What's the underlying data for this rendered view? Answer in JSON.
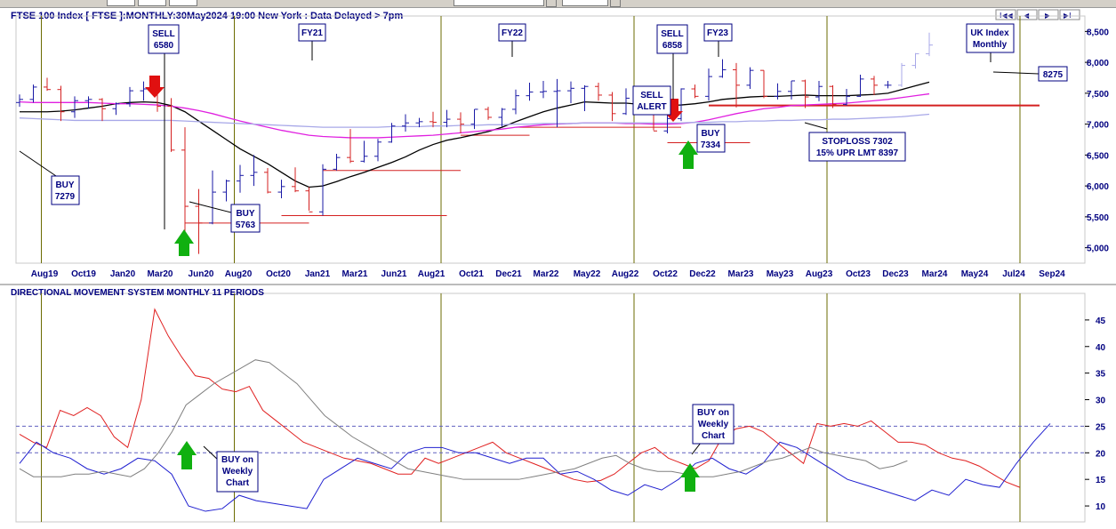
{
  "header": {
    "title": "FTSE 100 Index [ FTSE ]:MONTHLY:30May2024 19:00 New York : Data Delayed > 7pm",
    "nav_first": "I◀◀",
    "nav_prev": "◀",
    "nav_next": "▶",
    "nav_last": "▶I"
  },
  "indicator_title": "DIRECTIONAL MOVEMENT SYSTEM MONTHLY 11 PERIODS",
  "colors": {
    "up_bar": "#1a1aa6",
    "down_bar": "#d42020",
    "ma_black": "#000000",
    "ma_magenta": "#e020e0",
    "ma_lavender": "#a8a8e8",
    "di_plus": "#2020d0",
    "di_minus": "#e02020",
    "adx": "#808080",
    "vline": "#6b6b00",
    "arrow_up": "#10b010",
    "arrow_down": "#e01010",
    "dash": "#6060c0"
  },
  "chart_data": [
    {
      "type": "line",
      "title": "FTSE 100 Index [ FTSE ]:MONTHLY:30May2024 19:00 New York : Data Delayed > 7pm",
      "x_tick_labels": [
        "Aug19",
        "Oct19",
        "Jan20",
        "Mar20",
        "Jun20",
        "Aug20",
        "Oct20",
        "Jan21",
        "Mar21",
        "Jun21",
        "Aug21",
        "Oct21",
        "Dec21",
        "Mar22",
        "May22",
        "Aug22",
        "Oct22",
        "Dec22",
        "Mar23",
        "May23",
        "Aug23",
        "Oct23",
        "Dec23",
        "Mar24",
        "May24",
        "Jul24",
        "Sep24"
      ],
      "y_ticks": [
        "5,000",
        "5,500",
        "6,000",
        "6,500",
        "7,000",
        "7,500",
        "8,000",
        "8,500"
      ],
      "ylim": [
        4750,
        8750
      ],
      "grid": false,
      "ohlc": [
        {
          "o": 7350,
          "h": 7480,
          "l": 7280,
          "c": 7400
        },
        {
          "o": 7400,
          "h": 7640,
          "l": 7350,
          "c": 7600
        },
        {
          "o": 7600,
          "h": 7750,
          "l": 7540,
          "c": 7560
        },
        {
          "o": 7560,
          "h": 7620,
          "l": 7050,
          "c": 7200
        },
        {
          "o": 7200,
          "h": 7450,
          "l": 7100,
          "c": 7380
        },
        {
          "o": 7380,
          "h": 7450,
          "l": 7250,
          "c": 7400
        },
        {
          "o": 7400,
          "h": 7420,
          "l": 7050,
          "c": 7250
        },
        {
          "o": 7250,
          "h": 7350,
          "l": 7150,
          "c": 7330
        },
        {
          "o": 7330,
          "h": 7600,
          "l": 7280,
          "c": 7540
        },
        {
          "o": 7540,
          "h": 7690,
          "l": 7380,
          "c": 7570
        },
        {
          "o": 7570,
          "h": 7670,
          "l": 7200,
          "c": 7290
        },
        {
          "o": 7290,
          "h": 7420,
          "l": 6550,
          "c": 6580
        },
        {
          "o": 6580,
          "h": 6950,
          "l": 5020,
          "c": 5670
        },
        {
          "o": 5670,
          "h": 5950,
          "l": 4900,
          "c": 5400
        },
        {
          "o": 5400,
          "h": 6250,
          "l": 5380,
          "c": 5900
        },
        {
          "o": 5900,
          "h": 6100,
          "l": 5750,
          "c": 6080
        },
        {
          "o": 6080,
          "h": 6340,
          "l": 5890,
          "c": 6170
        },
        {
          "o": 6170,
          "h": 6500,
          "l": 6000,
          "c": 6220
        },
        {
          "o": 6220,
          "h": 6290,
          "l": 5880,
          "c": 5900
        },
        {
          "o": 5900,
          "h": 6100,
          "l": 5800,
          "c": 5990
        },
        {
          "o": 5990,
          "h": 6300,
          "l": 5900,
          "c": 5920
        },
        {
          "o": 5920,
          "h": 5980,
          "l": 5600,
          "c": 5580
        },
        {
          "o": 5580,
          "h": 6350,
          "l": 5520,
          "c": 6270
        },
        {
          "o": 6270,
          "h": 6520,
          "l": 6250,
          "c": 6460
        },
        {
          "o": 6460,
          "h": 6920,
          "l": 6370,
          "c": 6400
        },
        {
          "o": 6400,
          "h": 6730,
          "l": 6380,
          "c": 6480
        },
        {
          "o": 6480,
          "h": 6760,
          "l": 6400,
          "c": 6710
        },
        {
          "o": 6710,
          "h": 7020,
          "l": 6700,
          "c": 6970
        },
        {
          "o": 6970,
          "h": 7160,
          "l": 6880,
          "c": 7020
        },
        {
          "o": 7020,
          "h": 7100,
          "l": 6950,
          "c": 7040
        },
        {
          "o": 7040,
          "h": 7200,
          "l": 6950,
          "c": 7030
        },
        {
          "o": 7030,
          "h": 7230,
          "l": 6950,
          "c": 7080
        },
        {
          "o": 7080,
          "h": 7190,
          "l": 6850,
          "c": 7000
        },
        {
          "o": 7000,
          "h": 7240,
          "l": 6920,
          "c": 7240
        },
        {
          "o": 7240,
          "h": 7280,
          "l": 7070,
          "c": 7110
        },
        {
          "o": 7110,
          "h": 7260,
          "l": 6960,
          "c": 7240
        },
        {
          "o": 7240,
          "h": 7560,
          "l": 7160,
          "c": 7460
        },
        {
          "o": 7460,
          "h": 7670,
          "l": 7380,
          "c": 7520
        },
        {
          "o": 7520,
          "h": 7700,
          "l": 7420,
          "c": 7530
        },
        {
          "o": 7530,
          "h": 7730,
          "l": 6950,
          "c": 7540
        },
        {
          "o": 7540,
          "h": 7690,
          "l": 7340,
          "c": 7580
        },
        {
          "o": 7580,
          "h": 7630,
          "l": 7210,
          "c": 7610
        },
        {
          "o": 7610,
          "h": 7670,
          "l": 7380,
          "c": 7470
        },
        {
          "o": 7470,
          "h": 7520,
          "l": 7050,
          "c": 7170
        },
        {
          "o": 7170,
          "h": 7580,
          "l": 7150,
          "c": 7420
        },
        {
          "o": 7420,
          "h": 7560,
          "l": 7240,
          "c": 7280
        },
        {
          "o": 7280,
          "h": 7290,
          "l": 6900,
          "c": 6890
        },
        {
          "o": 6890,
          "h": 7230,
          "l": 6850,
          "c": 7090
        },
        {
          "o": 7090,
          "h": 7580,
          "l": 7050,
          "c": 7570
        },
        {
          "o": 7570,
          "h": 7640,
          "l": 7420,
          "c": 7450
        },
        {
          "o": 7450,
          "h": 7900,
          "l": 7380,
          "c": 7770
        },
        {
          "o": 7770,
          "h": 8050,
          "l": 7750,
          "c": 7880
        },
        {
          "o": 7880,
          "h": 7990,
          "l": 7270,
          "c": 7630
        },
        {
          "o": 7630,
          "h": 7920,
          "l": 7570,
          "c": 7870
        },
        {
          "o": 7870,
          "h": 7870,
          "l": 7420,
          "c": 7450
        },
        {
          "o": 7450,
          "h": 7660,
          "l": 7400,
          "c": 7530
        },
        {
          "o": 7530,
          "h": 7700,
          "l": 7400,
          "c": 7700
        },
        {
          "o": 7700,
          "h": 7720,
          "l": 7260,
          "c": 7440
        },
        {
          "o": 7440,
          "h": 7700,
          "l": 7370,
          "c": 7610
        },
        {
          "o": 7610,
          "h": 7630,
          "l": 7260,
          "c": 7320
        },
        {
          "o": 7320,
          "h": 7570,
          "l": 7300,
          "c": 7450
        },
        {
          "o": 7450,
          "h": 7800,
          "l": 7440,
          "c": 7730
        },
        {
          "o": 7730,
          "h": 7780,
          "l": 7470,
          "c": 7630
        },
        {
          "o": 7630,
          "h": 7700,
          "l": 7580,
          "c": 7630
        },
        {
          "o": 7630,
          "h": 7990,
          "l": 7600,
          "c": 7950
        },
        {
          "o": 7950,
          "h": 8150,
          "l": 7900,
          "c": 8140
        },
        {
          "o": 8140,
          "h": 8480,
          "l": 8100,
          "c": 8280
        }
      ],
      "series": [
        {
          "values": [
            7200,
            7200,
            7200,
            7210,
            7230,
            7260,
            7290,
            7330,
            7350,
            7360,
            7350,
            7300,
            7200,
            7050,
            6900,
            6750,
            6600,
            6480,
            6360,
            6220,
            6080,
            5980,
            6000,
            6070,
            6150,
            6220,
            6300,
            6380,
            6470,
            6580,
            6670,
            6740,
            6780,
            6830,
            6880,
            6950,
            7040,
            7120,
            7200,
            7260,
            7310,
            7360,
            7350,
            7340,
            7340,
            7320,
            7300,
            7300,
            7310,
            7330,
            7360,
            7400,
            7420,
            7440,
            7450,
            7450,
            7460,
            7470,
            7460,
            7460,
            7460,
            7470,
            7480,
            7500,
            7560,
            7620,
            7680
          ]
        },
        {
          "values": [
            7360,
            7350,
            7350,
            7350,
            7350,
            7350,
            7340,
            7330,
            7330,
            7320,
            7310,
            7290,
            7260,
            7220,
            7170,
            7110,
            7050,
            7000,
            6950,
            6900,
            6860,
            6820,
            6800,
            6790,
            6780,
            6780,
            6780,
            6790,
            6800,
            6810,
            6820,
            6840,
            6860,
            6880,
            6900,
            6920,
            6950,
            6970,
            6990,
            7000,
            7010,
            7020,
            7020,
            7020,
            7010,
            7010,
            7000,
            7000,
            7010,
            7030,
            7070,
            7120,
            7170,
            7210,
            7250,
            7270,
            7300,
            7310,
            7320,
            7330,
            7340,
            7360,
            7380,
            7400,
            7430,
            7460,
            7490
          ]
        },
        {
          "values": [
            7100,
            7090,
            7080,
            7070,
            7060,
            7060,
            7060,
            7060,
            7060,
            7060,
            7060,
            7060,
            7050,
            7040,
            7030,
            7020,
            7010,
            7000,
            6990,
            6980,
            6970,
            6960,
            6950,
            6950,
            6950,
            6950,
            6950,
            6960,
            6960,
            6960,
            6970,
            6970,
            6980,
            6980,
            6990,
            6990,
            7000,
            7000,
            7010,
            7010,
            7010,
            7020,
            7020,
            7020,
            7020,
            7020,
            7020,
            7020,
            7020,
            7030,
            7030,
            7040,
            7040,
            7050,
            7050,
            7060,
            7060,
            7070,
            7070,
            7080,
            7080,
            7090,
            7100,
            7110,
            7120,
            7140,
            7160
          ]
        }
      ],
      "support_lines": [
        {
          "y": 5400,
          "x1": 12,
          "x2": 21
        },
        {
          "y": 5520,
          "x1": 19,
          "x2": 31
        },
        {
          "y": 6250,
          "x1": 22,
          "x2": 32
        },
        {
          "y": 6820,
          "x1": 32,
          "x2": 37
        },
        {
          "y": 6950,
          "x1": 36,
          "x2": 48
        },
        {
          "y": 6700,
          "x1": 47,
          "x2": 53
        },
        {
          "y": 7302,
          "x1": 50,
          "x2": 74
        }
      ],
      "vertical_markers": [
        1,
        15,
        30,
        44,
        58,
        72
      ],
      "annotations": {
        "buy_7279": [
          "BUY",
          "7279"
        ],
        "sell_6580": [
          "SELL",
          "6580"
        ],
        "buy_5763": [
          "BUY",
          "5763"
        ],
        "fy21": "FY21",
        "fy22": "FY22",
        "sell_6858": [
          "SELL",
          "6858"
        ],
        "fy23": "FY23",
        "sell_alert": [
          "SELL",
          "ALERT"
        ],
        "buy_7334": [
          "BUY",
          "7334"
        ],
        "stoploss": [
          "STOPLOSS 7302",
          "15% UPR LMT 8397"
        ],
        "uk_index": [
          "UK Index",
          "Monthly"
        ],
        "last_price": "8275"
      }
    },
    {
      "type": "line",
      "title": "DIRECTIONAL MOVEMENT SYSTEM MONTHLY 11 PERIODS",
      "y_ticks": [
        "10",
        "15",
        "20",
        "25",
        "30",
        "35",
        "40",
        "45"
      ],
      "ylim": [
        7,
        50
      ],
      "reference_lines": [
        20,
        25
      ],
      "series": [
        {
          "values": [
            23.5,
            22,
            21,
            28,
            27,
            28.5,
            27,
            23,
            21,
            30,
            47,
            42,
            38,
            34.5,
            34,
            32,
            31.5,
            32.5,
            28,
            26,
            24,
            22,
            21,
            20,
            19,
            18.5,
            18,
            17,
            16,
            16,
            19,
            18,
            19,
            20,
            21,
            22,
            20,
            19,
            18,
            17,
            16,
            15,
            14.5,
            14.8,
            16,
            18,
            20,
            21,
            19,
            18,
            17,
            18.5,
            23,
            24.5,
            25,
            24,
            22,
            20,
            18,
            25.5,
            25,
            25.5,
            25,
            26,
            24,
            22,
            22,
            21.5,
            20,
            19,
            18.5,
            17.5,
            16,
            14.5,
            13.5
          ]
        },
        {
          "values": [
            18,
            22,
            20,
            19,
            17,
            16,
            17,
            19,
            18.5,
            16,
            10,
            9,
            9.5,
            12,
            11,
            10.5,
            10,
            9.5,
            15,
            17,
            19,
            18,
            17,
            20,
            21,
            21,
            20,
            20,
            19,
            18,
            19,
            19,
            16,
            16.5,
            15,
            13,
            12,
            14,
            13,
            15,
            18,
            19,
            17,
            16,
            18,
            22,
            21,
            19,
            17,
            15,
            14,
            13,
            12,
            11,
            13,
            12,
            15,
            14,
            13.5,
            18,
            22,
            25.5
          ]
        },
        {
          "values": [
            17,
            15.5,
            15.5,
            15.5,
            16,
            16,
            16.5,
            16,
            15.5,
            17,
            20,
            24,
            29,
            31,
            33,
            34.5,
            36,
            37.5,
            37,
            35,
            33,
            30,
            27,
            25,
            23,
            21.5,
            20,
            18.5,
            17,
            16.5,
            16,
            15.5,
            15,
            15,
            15,
            15,
            15,
            15.5,
            16,
            16.5,
            17,
            18,
            19,
            19.5,
            18,
            17,
            16.5,
            16.5,
            16,
            15.5,
            15.5,
            16,
            16.5,
            17.5,
            18.5,
            19,
            20,
            21,
            20,
            19.5,
            19,
            18.5,
            17,
            17.5,
            18.5
          ]
        }
      ],
      "annotations": {
        "buy_weekly_1": [
          "BUY on",
          "Weekly",
          "Chart"
        ],
        "buy_weekly_2": [
          "BUY on",
          "Weekly",
          "Chart"
        ]
      }
    }
  ]
}
